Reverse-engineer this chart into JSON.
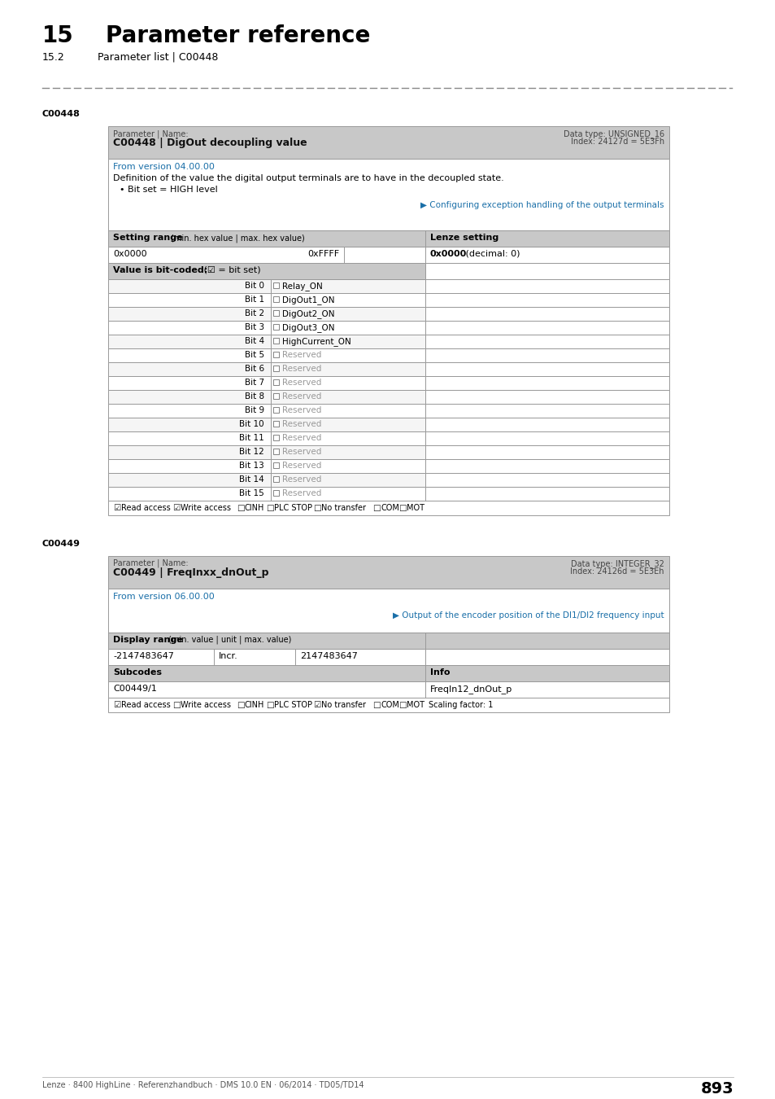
{
  "page_title_num": "15",
  "page_title": "Parameter reference",
  "page_subtitle_num": "15.2",
  "page_subtitle": "Parameter list | C00448",
  "section1_id": "C00448",
  "table1": {
    "param_label": "Parameter | Name:",
    "param_name": "C00448 | DigOut decoupling value",
    "data_type_label": "Data type: UNSIGNED_16",
    "index_label": "Index: 24127⁤d = 5E3F⁤h",
    "version": "From version 04.00.00",
    "description1": "Definition of the value the digital output terminals are to have in the decoupled state.",
    "description2": "• Bit set = HIGH level",
    "link_text": "▶ Configuring exception handling of the output terminals",
    "setting_range_label": "Setting range",
    "setting_range_sub": "(min. hex value | max. hex value)",
    "lenze_setting_label": "Lenze setting",
    "min_val": "0x0000",
    "max_val": "0xFFFF",
    "lenze_val_bold": "0x0000",
    "lenze_val_normal": " (decimal: 0)",
    "bit_coded_label": "Value is bit-coded:",
    "bit_coded_sub": " (☑ = bit set)",
    "bits": [
      {
        "bit": "Bit 0",
        "name": "Relay_ON",
        "reserved": false
      },
      {
        "bit": "Bit 1",
        "name": "DigOut1_ON",
        "reserved": false
      },
      {
        "bit": "Bit 2",
        "name": "DigOut2_ON",
        "reserved": false
      },
      {
        "bit": "Bit 3",
        "name": "DigOut3_ON",
        "reserved": false
      },
      {
        "bit": "Bit 4",
        "name": "HighCurrent_ON",
        "reserved": false
      },
      {
        "bit": "Bit 5",
        "name": "Reserved",
        "reserved": true
      },
      {
        "bit": "Bit 6",
        "name": "Reserved",
        "reserved": true
      },
      {
        "bit": "Bit 7",
        "name": "Reserved",
        "reserved": true
      },
      {
        "bit": "Bit 8",
        "name": "Reserved",
        "reserved": true
      },
      {
        "bit": "Bit 9",
        "name": "Reserved",
        "reserved": true
      },
      {
        "bit": "Bit 10",
        "name": "Reserved",
        "reserved": true
      },
      {
        "bit": "Bit 11",
        "name": "Reserved",
        "reserved": true
      },
      {
        "bit": "Bit 12",
        "name": "Reserved",
        "reserved": true
      },
      {
        "bit": "Bit 13",
        "name": "Reserved",
        "reserved": true
      },
      {
        "bit": "Bit 14",
        "name": "Reserved",
        "reserved": true
      },
      {
        "bit": "Bit 15",
        "name": "Reserved",
        "reserved": true
      }
    ],
    "footer_items": [
      {
        "symbol": "☑",
        "text": "Read access",
        "checked": true
      },
      {
        "symbol": "☑",
        "text": "Write access",
        "checked": true
      },
      {
        "symbol": "□",
        "text": "CINH",
        "checked": false
      },
      {
        "symbol": "□",
        "text": "PLC STOP",
        "checked": false
      },
      {
        "symbol": "□",
        "text": "No transfer",
        "checked": false
      },
      {
        "symbol": "□",
        "text": "COM",
        "checked": false
      },
      {
        "symbol": "□",
        "text": "MOT",
        "checked": false
      }
    ]
  },
  "section2_id": "C00449",
  "table2": {
    "param_label": "Parameter | Name:",
    "param_name": "C00449 | FreqInxx_dnOut_p",
    "data_type_label": "Data type: INTEGER_32",
    "index_label": "Index: 24126⁤d = 5E3E⁤h",
    "version": "From version 06.00.00",
    "link_text": "▶ Output of the encoder position of the DI1/DI2 frequency input",
    "display_range_label": "Display range",
    "display_range_sub": "(min. value | unit | max. value)",
    "min_val": "-2147483647",
    "unit_val": "Incr.",
    "max_val": "2147483647",
    "subcodes_label": "Subcodes",
    "info_label": "Info",
    "subcode": "C00449/1",
    "info_val": "FreqIn12_dnOut_p",
    "footer_items": [
      {
        "symbol": "☑",
        "text": "Read access",
        "checked": true
      },
      {
        "symbol": "□",
        "text": "Write access",
        "checked": false
      },
      {
        "symbol": "□",
        "text": "CINH",
        "checked": false
      },
      {
        "symbol": "□",
        "text": "PLC STOP",
        "checked": false
      },
      {
        "symbol": "☑",
        "text": "No transfer",
        "checked": true
      },
      {
        "symbol": "□",
        "text": "COM",
        "checked": false
      },
      {
        "symbol": "□",
        "text": "MOT",
        "checked": false
      }
    ],
    "scaling": "Scaling factor: 1"
  },
  "footer_text": "Lenze · 8400 HighLine · Referenzhandbuch · DMS 10.0 EN · 06/2014 · TD05/TD14",
  "page_number": "893",
  "bg_color": "#ffffff",
  "header_bg": "#c8c8c8",
  "table_border": "#999999",
  "blue_color": "#1a6fa8",
  "text_color": "#000000",
  "gray_text": "#999999",
  "dash_color": "#888888"
}
